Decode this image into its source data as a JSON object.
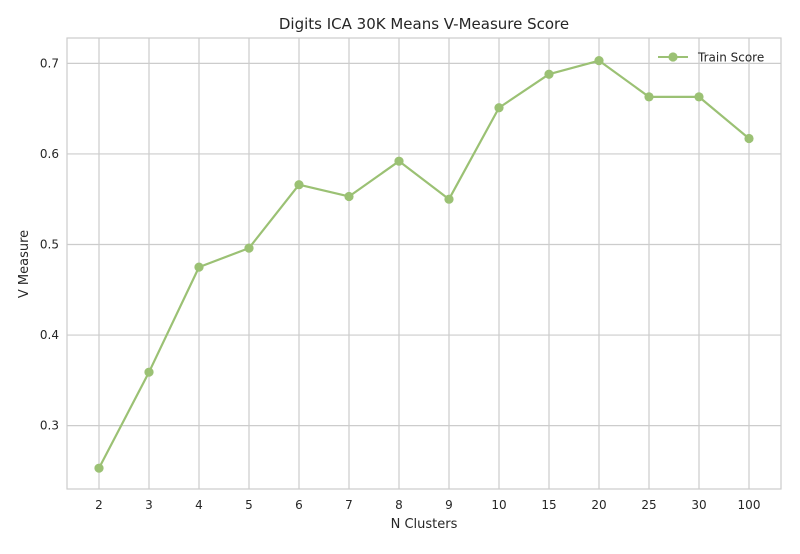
{
  "chart_data": {
    "type": "line",
    "title": "Digits ICA 30K Means V-Measure Score",
    "xlabel": "N Clusters",
    "ylabel": "V Measure",
    "categories": [
      "2",
      "3",
      "4",
      "5",
      "6",
      "7",
      "8",
      "9",
      "10",
      "15",
      "20",
      "25",
      "30",
      "100"
    ],
    "series": [
      {
        "name": "Train Score",
        "values": [
          0.253,
          0.359,
          0.475,
          0.496,
          0.566,
          0.553,
          0.592,
          0.55,
          0.651,
          0.688,
          0.703,
          0.663,
          0.663,
          0.617
        ]
      }
    ],
    "ylim": [
      0.23,
      0.728
    ],
    "yticks": [
      0.3,
      0.4,
      0.5,
      0.6,
      0.7
    ],
    "ytick_labels": [
      "0.3",
      "0.4",
      "0.5",
      "0.6",
      "0.7"
    ],
    "grid": true,
    "legend_position": "top-right",
    "colors": {
      "series": "#9bc174",
      "grid": "#cccccc",
      "background": "#ffffff"
    }
  }
}
